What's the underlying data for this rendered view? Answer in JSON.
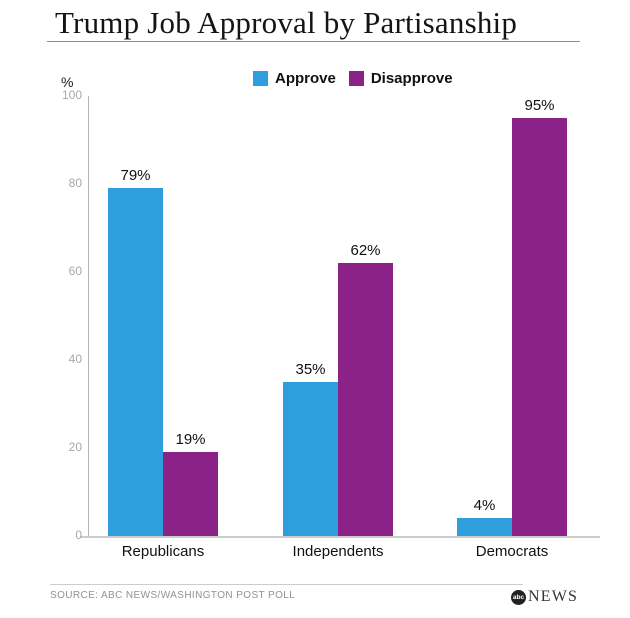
{
  "header": {
    "title": "Trump Job Approval by Partisanship"
  },
  "legend": [
    {
      "label": "Approve",
      "color": "#2E9FDC"
    },
    {
      "label": "Disapprove",
      "color": "#8A2288"
    }
  ],
  "chart_data": {
    "type": "bar",
    "title": "Trump Job Approval by Partisanship",
    "categories": [
      "Republicans",
      "Independents",
      "Democrats"
    ],
    "series": [
      {
        "name": "Approve",
        "color": "#2E9FDC",
        "values": [
          79,
          35,
          4
        ]
      },
      {
        "name": "Disapprove",
        "color": "#8A2288",
        "values": [
          19,
          62,
          95
        ]
      }
    ],
    "value_label_suffix": "%",
    "ylabel": "%",
    "ylim": [
      0,
      100
    ],
    "yticks": [
      0,
      20,
      40,
      60,
      80,
      100
    ],
    "grid": false,
    "legend_position": "top-center"
  },
  "footer": {
    "source": "SOURCE: ABC NEWS/WASHINGTON POST POLL",
    "logo": {
      "circle_text": "abc",
      "wordmark": "NEWS"
    }
  }
}
